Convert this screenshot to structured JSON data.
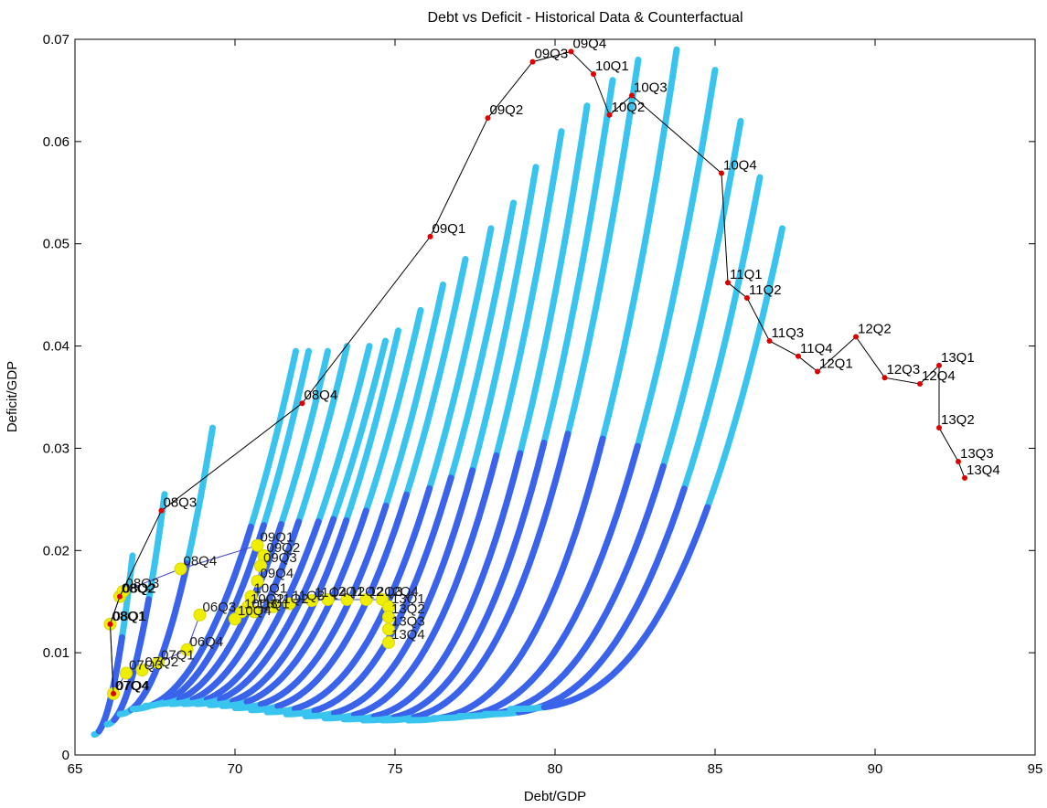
{
  "chart_data": {
    "type": "scatter",
    "title": "Debt vs Deficit - Historical Data & Counterfactual",
    "xlabel": "Debt/GDP",
    "ylabel": "Deficit/GDP",
    "xlim": [
      65,
      95
    ],
    "ylim": [
      0,
      0.07
    ],
    "xticks": [
      "65",
      "70",
      "75",
      "80",
      "85",
      "90",
      "95"
    ],
    "yticks": [
      "0",
      "0.01",
      "0.02",
      "0.03",
      "0.04",
      "0.05",
      "0.06",
      "0.07"
    ],
    "grid": false,
    "colors": {
      "historical_line": "#000000",
      "historical_marker": "#dd0000",
      "counterfactual_line": "#4444cc",
      "counterfactual_marker": "#eeee00",
      "fan_light": "#38c4ee",
      "fan_dark": "#3a62ea"
    },
    "historical": [
      {
        "label": "07Q4",
        "x": 66.2,
        "y": 0.006
      },
      {
        "label": "08Q1",
        "x": 66.1,
        "y": 0.0128
      },
      {
        "label": "08Q2",
        "x": 66.4,
        "y": 0.0155
      },
      {
        "label": "08Q3",
        "x": 67.7,
        "y": 0.0239
      },
      {
        "label": "08Q4",
        "x": 72.1,
        "y": 0.0344
      },
      {
        "label": "09Q1",
        "x": 76.1,
        "y": 0.0507
      },
      {
        "label": "09Q2",
        "x": 77.9,
        "y": 0.0623
      },
      {
        "label": "09Q3",
        "x": 79.3,
        "y": 0.0678
      },
      {
        "label": "09Q4",
        "x": 80.5,
        "y": 0.0688
      },
      {
        "label": "10Q1",
        "x": 81.2,
        "y": 0.0666
      },
      {
        "label": "10Q2",
        "x": 81.7,
        "y": 0.0626
      },
      {
        "label": "10Q3",
        "x": 82.4,
        "y": 0.0645
      },
      {
        "label": "10Q4",
        "x": 85.2,
        "y": 0.0569
      },
      {
        "label": "11Q1",
        "x": 85.4,
        "y": 0.0462
      },
      {
        "label": "11Q2",
        "x": 86.0,
        "y": 0.0447
      },
      {
        "label": "11Q3",
        "x": 86.7,
        "y": 0.0405
      },
      {
        "label": "11Q4",
        "x": 87.6,
        "y": 0.039
      },
      {
        "label": "12Q1",
        "x": 88.2,
        "y": 0.0375
      },
      {
        "label": "12Q2",
        "x": 89.4,
        "y": 0.0409
      },
      {
        "label": "12Q3",
        "x": 90.3,
        "y": 0.0369
      },
      {
        "label": "12Q4",
        "x": 91.4,
        "y": 0.0363
      },
      {
        "label": "13Q1",
        "x": 92.0,
        "y": 0.0381
      },
      {
        "label": "13Q2",
        "x": 92.0,
        "y": 0.032
      },
      {
        "label": "13Q3",
        "x": 92.6,
        "y": 0.0287
      },
      {
        "label": "13Q4",
        "x": 92.8,
        "y": 0.0271
      }
    ],
    "counterfactual": [
      {
        "label": "06Q3",
        "x": 68.9,
        "y": 0.0137
      },
      {
        "label": "06Q4",
        "x": 68.5,
        "y": 0.0103
      },
      {
        "label": "07Q1",
        "x": 67.6,
        "y": 0.009
      },
      {
        "label": "07Q2",
        "x": 67.1,
        "y": 0.0083
      },
      {
        "label": "07Q3",
        "x": 66.6,
        "y": 0.008
      },
      {
        "label": "07Q4",
        "x": 66.2,
        "y": 0.006
      },
      {
        "label": "08Q1",
        "x": 66.1,
        "y": 0.0128
      },
      {
        "label": "08Q2",
        "x": 66.4,
        "y": 0.0155
      },
      {
        "label": "08Q3",
        "x": 66.5,
        "y": 0.016
      },
      {
        "label": "08Q4",
        "x": 68.3,
        "y": 0.0182
      },
      {
        "label": "09Q1",
        "x": 70.7,
        "y": 0.0205
      },
      {
        "label": "09Q2",
        "x": 70.9,
        "y": 0.0195
      },
      {
        "label": "09Q3",
        "x": 70.8,
        "y": 0.0185
      },
      {
        "label": "09Q4",
        "x": 70.7,
        "y": 0.017
      },
      {
        "label": "10Q1",
        "x": 70.5,
        "y": 0.0155
      },
      {
        "label": "10Q2",
        "x": 70.4,
        "y": 0.0145
      },
      {
        "label": "10Q3",
        "x": 70.2,
        "y": 0.014
      },
      {
        "label": "10Q4",
        "x": 70.0,
        "y": 0.0133
      },
      {
        "label": "11Q1",
        "x": 70.6,
        "y": 0.014
      },
      {
        "label": "11Q2",
        "x": 71.2,
        "y": 0.0145
      },
      {
        "label": "11Q3",
        "x": 71.7,
        "y": 0.0148
      },
      {
        "label": "11Q4",
        "x": 72.4,
        "y": 0.0151
      },
      {
        "label": "12Q1",
        "x": 72.9,
        "y": 0.0152
      },
      {
        "label": "12Q2",
        "x": 73.5,
        "y": 0.0152
      },
      {
        "label": "12Q3",
        "x": 74.1,
        "y": 0.0152
      },
      {
        "label": "12Q4",
        "x": 74.6,
        "y": 0.0152
      },
      {
        "label": "13Q1",
        "x": 74.8,
        "y": 0.0145
      },
      {
        "label": "13Q2",
        "x": 74.8,
        "y": 0.0135
      },
      {
        "label": "13Q3",
        "x": 74.8,
        "y": 0.0123
      },
      {
        "label": "13Q4",
        "x": 74.8,
        "y": 0.011
      }
    ],
    "fan_curves": [
      {
        "start": [
          65.6,
          0.002
        ],
        "end": [
          66.8,
          0.0195
        ],
        "k": 1.9
      },
      {
        "start": [
          66.0,
          0.003
        ],
        "end": [
          67.8,
          0.0255
        ],
        "k": 1.9
      },
      {
        "start": [
          66.4,
          0.004
        ],
        "end": [
          69.3,
          0.032
        ],
        "k": 2.0
      },
      {
        "start": [
          66.8,
          0.0045
        ],
        "end": [
          71.9,
          0.0395
        ],
        "k": 2.1
      },
      {
        "start": [
          67.2,
          0.0048
        ],
        "end": [
          72.3,
          0.0395
        ],
        "k": 2.1
      },
      {
        "start": [
          67.6,
          0.005
        ],
        "end": [
          72.9,
          0.0395
        ],
        "k": 2.1
      },
      {
        "start": [
          68.0,
          0.005
        ],
        "end": [
          73.5,
          0.04
        ],
        "k": 2.1
      },
      {
        "start": [
          68.4,
          0.005
        ],
        "end": [
          74.2,
          0.04
        ],
        "k": 2.1
      },
      {
        "start": [
          68.8,
          0.005
        ],
        "end": [
          74.7,
          0.0405
        ],
        "k": 2.1
      },
      {
        "start": [
          69.2,
          0.0049
        ],
        "end": [
          75.1,
          0.0415
        ],
        "k": 2.2
      },
      {
        "start": [
          69.6,
          0.0048
        ],
        "end": [
          75.8,
          0.0435
        ],
        "k": 2.2
      },
      {
        "start": [
          70.0,
          0.0046
        ],
        "end": [
          76.5,
          0.046
        ],
        "k": 2.3
      },
      {
        "start": [
          70.5,
          0.0044
        ],
        "end": [
          77.2,
          0.0485
        ],
        "k": 2.3
      },
      {
        "start": [
          71.0,
          0.0042
        ],
        "end": [
          78.0,
          0.0515
        ],
        "k": 2.4
      },
      {
        "start": [
          71.6,
          0.004
        ],
        "end": [
          78.7,
          0.054
        ],
        "k": 2.4
      },
      {
        "start": [
          72.2,
          0.0038
        ],
        "end": [
          79.4,
          0.0575
        ],
        "k": 2.5
      },
      {
        "start": [
          72.8,
          0.0036
        ],
        "end": [
          80.2,
          0.061
        ],
        "k": 2.5
      },
      {
        "start": [
          73.4,
          0.0035
        ],
        "end": [
          81.0,
          0.0635
        ],
        "k": 2.6
      },
      {
        "start": [
          74.0,
          0.0034
        ],
        "end": [
          81.8,
          0.066
        ],
        "k": 2.6
      },
      {
        "start": [
          74.6,
          0.0034
        ],
        "end": [
          82.6,
          0.068
        ],
        "k": 2.6
      },
      {
        "start": [
          75.4,
          0.0034
        ],
        "end": [
          83.8,
          0.069
        ],
        "k": 2.7
      },
      {
        "start": [
          76.2,
          0.0036
        ],
        "end": [
          85.0,
          0.067
        ],
        "k": 2.7
      },
      {
        "start": [
          77.0,
          0.0038
        ],
        "end": [
          85.8,
          0.062
        ],
        "k": 2.7
      },
      {
        "start": [
          77.8,
          0.004
        ],
        "end": [
          86.4,
          0.0565
        ],
        "k": 2.7
      },
      {
        "start": [
          78.6,
          0.0045
        ],
        "end": [
          87.1,
          0.0515
        ],
        "k": 2.7
      }
    ]
  }
}
